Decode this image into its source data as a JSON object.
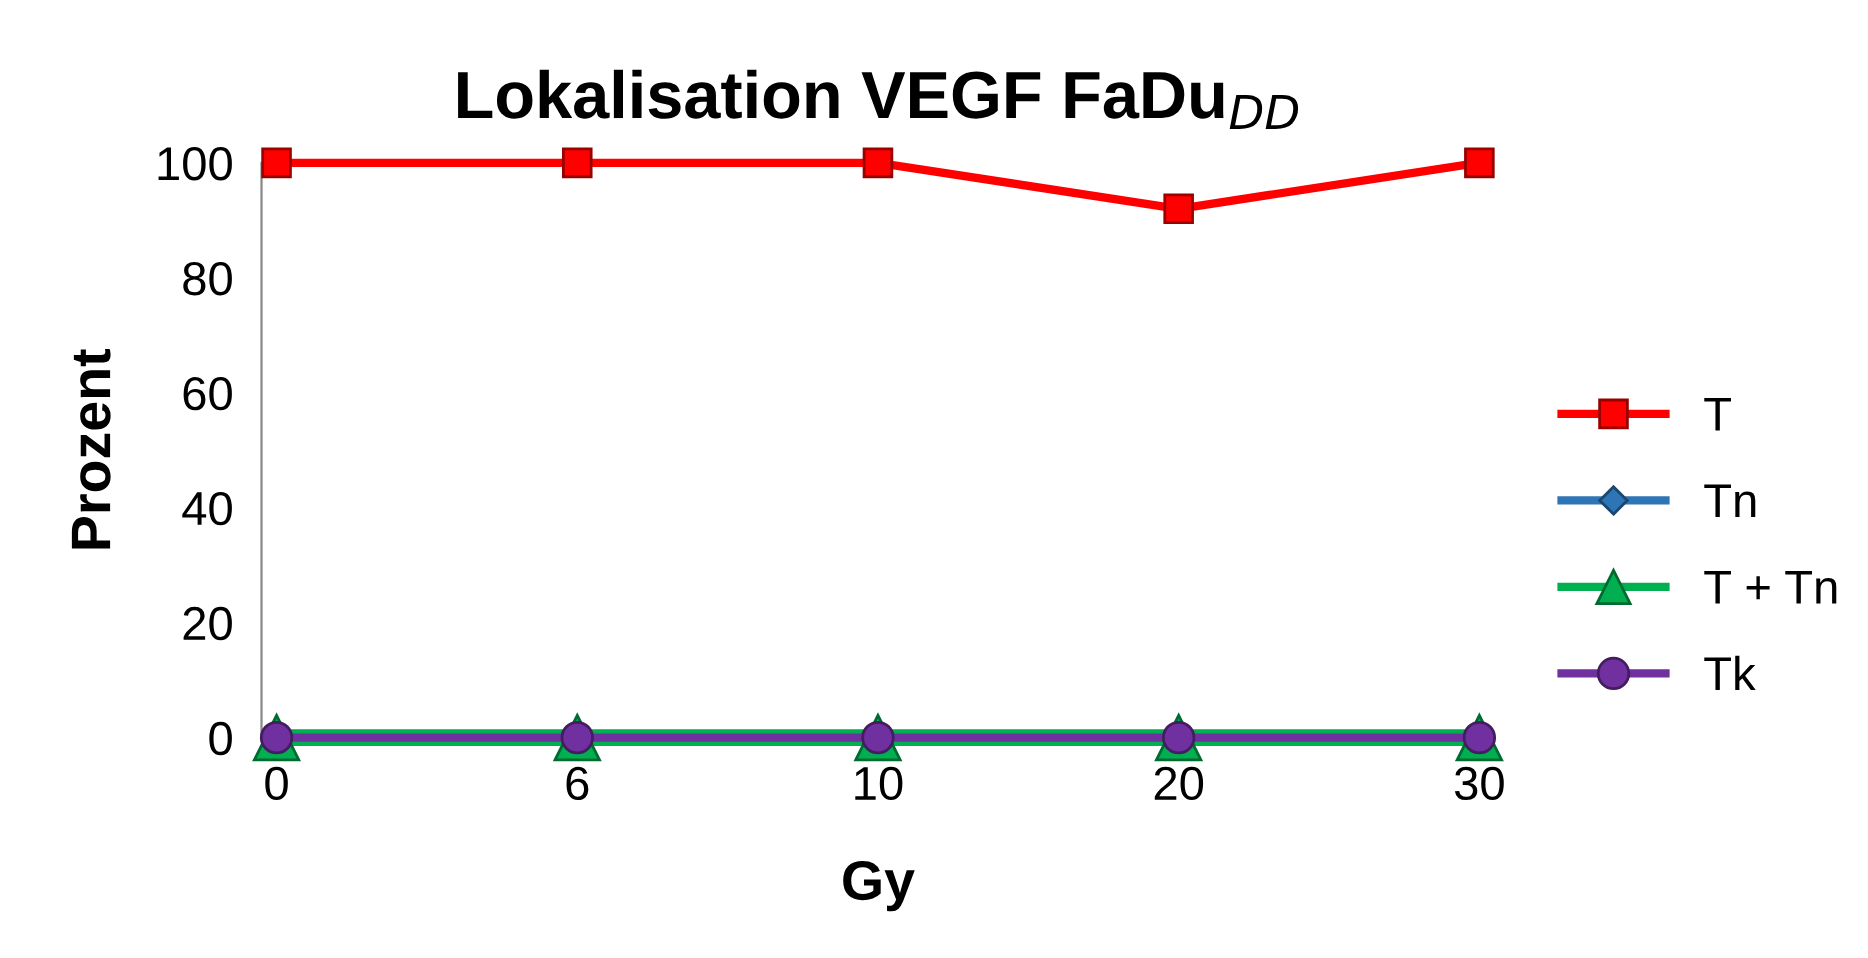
{
  "chart_data": {
    "type": "line",
    "title": "Lokalisation VEGF FaDu$_{DD}$",
    "xlabel": "Gy",
    "ylabel": "Prozent",
    "categories": [
      "0",
      "6",
      "10",
      "20",
      "30"
    ],
    "series": [
      {
        "name": "T",
        "color": "#ff0000",
        "marker": "square",
        "values": [
          100,
          100,
          100,
          92,
          100
        ]
      },
      {
        "name": "Tn",
        "color": "#2e75b6",
        "marker": "diamond",
        "values": [
          null,
          null,
          null,
          null,
          null
        ]
      },
      {
        "name": "T + Tn",
        "color": "#00b050",
        "marker": "triangle",
        "values": [
          0,
          0,
          0,
          0,
          0
        ]
      },
      {
        "name": "Tk",
        "color": "#7030a0",
        "marker": "circle",
        "values": [
          0,
          0,
          0,
          0,
          0
        ]
      }
    ],
    "ylim": [
      0,
      100
    ],
    "yticks": [
      0,
      20,
      40,
      60,
      80,
      100
    ],
    "grid": false,
    "legend": "right"
  }
}
